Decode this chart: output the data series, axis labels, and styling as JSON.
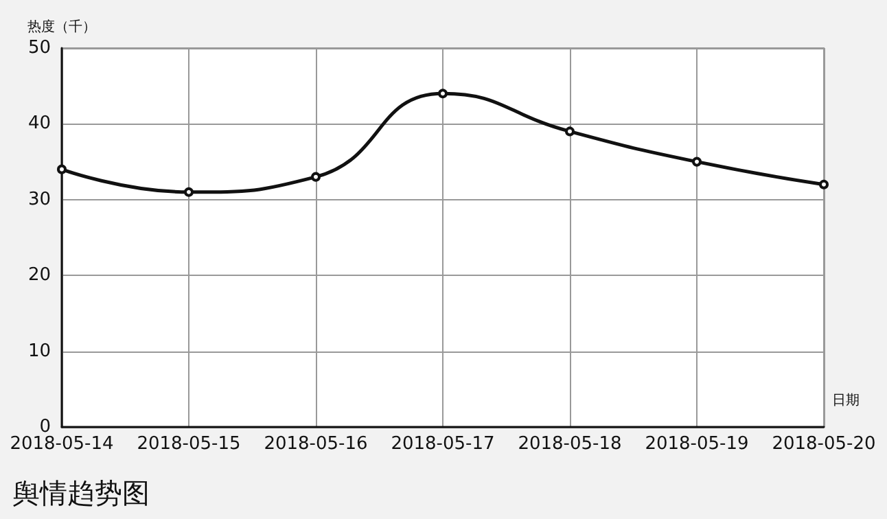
{
  "chart_data": {
    "type": "line",
    "title": "舆情趋势图",
    "xlabel": "日期",
    "ylabel": "热度（千）",
    "categories": [
      "2018-05-14",
      "2018-05-15",
      "2018-05-16",
      "2018-05-17",
      "2018-05-18",
      "2018-05-19",
      "2018-05-20"
    ],
    "series": [
      {
        "color": "#111111",
        "values": [
          34,
          31,
          33,
          44,
          39,
          35,
          32
        ]
      }
    ],
    "ylim": [
      0,
      50
    ],
    "yticks": [
      0,
      10,
      20,
      30,
      40,
      50
    ],
    "grid": true,
    "marker": "circle",
    "line_style": "solid"
  }
}
